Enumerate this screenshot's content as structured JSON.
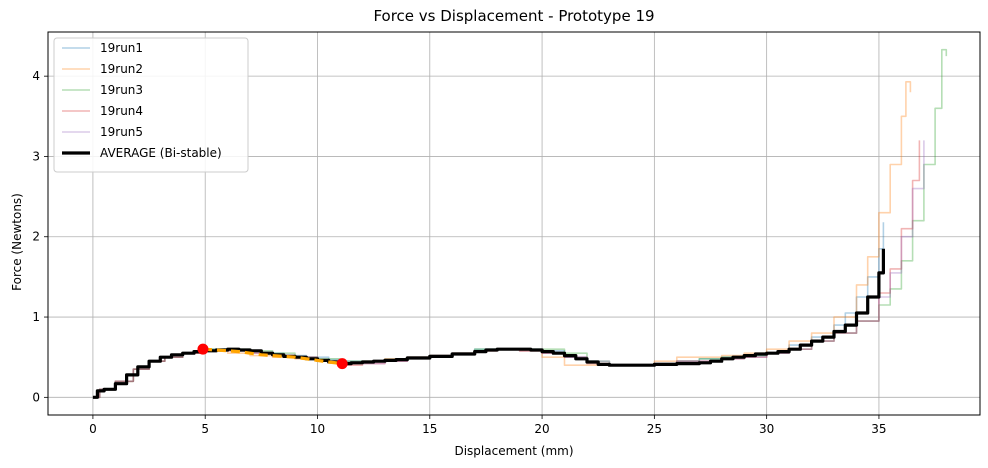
{
  "chart_data": {
    "type": "line",
    "title": "Force vs Displacement - Prototype 19",
    "xlabel": "Displacement (mm)",
    "ylabel": "Force (Newtons)",
    "xlim": [
      -2,
      39.5
    ],
    "ylim": [
      -0.22,
      4.55
    ],
    "xticks": [
      0,
      5,
      10,
      15,
      20,
      25,
      30,
      35
    ],
    "yticks": [
      0,
      1,
      2,
      3,
      4
    ],
    "grid": true,
    "legend_position": "top-left",
    "series": [
      {
        "name": "19run1",
        "color": "#1f77b4",
        "style": "faint",
        "x": [
          0,
          0.3,
          1,
          1.8,
          2.5,
          3.2,
          4,
          5,
          5.8,
          6.5,
          7.5,
          8.5,
          9.5,
          10.5,
          11.2,
          12,
          13,
          14,
          15,
          16,
          17,
          18,
          19,
          20,
          21,
          22,
          22.5,
          24,
          25,
          26,
          27,
          28,
          29,
          30,
          31,
          32,
          33,
          33.5,
          34,
          34.5,
          35,
          35.2
        ],
        "y": [
          0,
          0.1,
          0.2,
          0.35,
          0.45,
          0.5,
          0.55,
          0.6,
          0.6,
          0.58,
          0.55,
          0.52,
          0.5,
          0.47,
          0.45,
          0.45,
          0.47,
          0.5,
          0.52,
          0.55,
          0.6,
          0.6,
          0.6,
          0.58,
          0.5,
          0.45,
          0.4,
          0.4,
          0.42,
          0.45,
          0.48,
          0.5,
          0.52,
          0.55,
          0.65,
          0.75,
          0.9,
          1.05,
          1.25,
          1.5,
          1.85,
          2.18
        ]
      },
      {
        "name": "19run2",
        "color": "#ff7f0e",
        "style": "faint",
        "x": [
          0,
          0.3,
          1,
          1.8,
          2.5,
          3.2,
          4,
          5,
          6,
          7,
          8,
          9,
          10,
          11,
          12,
          13,
          14,
          15,
          16,
          17,
          18,
          19,
          20,
          21,
          22,
          23,
          24,
          25,
          26,
          27,
          28,
          29,
          30,
          31,
          32,
          33,
          34,
          34.5,
          35,
          35.5,
          36,
          36.2,
          36.4
        ],
        "y": [
          0,
          0.1,
          0.2,
          0.35,
          0.45,
          0.5,
          0.55,
          0.58,
          0.55,
          0.52,
          0.5,
          0.48,
          0.45,
          0.42,
          0.45,
          0.48,
          0.5,
          0.52,
          0.55,
          0.58,
          0.6,
          0.58,
          0.5,
          0.4,
          0.4,
          0.4,
          0.4,
          0.45,
          0.5,
          0.5,
          0.52,
          0.55,
          0.6,
          0.7,
          0.8,
          1.0,
          1.4,
          1.75,
          2.3,
          2.9,
          3.5,
          3.93,
          3.8
        ]
      },
      {
        "name": "19run3",
        "color": "#2ca02c",
        "style": "faint",
        "x": [
          0,
          0.3,
          1,
          1.8,
          2.5,
          3.2,
          4,
          5,
          6,
          7,
          8,
          9,
          10,
          11,
          12,
          13,
          14,
          15,
          16,
          17,
          18,
          19,
          20,
          21,
          22,
          23,
          24,
          25,
          26,
          27,
          28,
          29,
          30,
          31,
          32,
          33,
          34,
          35,
          35.5,
          36,
          36.5,
          37,
          37.5,
          37.8,
          38
        ],
        "y": [
          0,
          0.1,
          0.2,
          0.35,
          0.45,
          0.5,
          0.55,
          0.6,
          0.6,
          0.58,
          0.55,
          0.5,
          0.48,
          0.45,
          0.45,
          0.47,
          0.5,
          0.52,
          0.55,
          0.6,
          0.6,
          0.6,
          0.6,
          0.55,
          0.45,
          0.4,
          0.4,
          0.42,
          0.45,
          0.48,
          0.5,
          0.52,
          0.55,
          0.6,
          0.7,
          0.8,
          0.95,
          1.15,
          1.35,
          1.7,
          2.2,
          2.9,
          3.6,
          4.33,
          4.25
        ]
      },
      {
        "name": "19run4",
        "color": "#d62728",
        "style": "faint",
        "x": [
          0,
          0.3,
          1,
          1.8,
          2.5,
          3.2,
          4,
          5,
          6,
          7,
          8,
          9,
          10,
          11,
          12,
          13,
          14,
          15,
          16,
          17,
          18,
          19,
          20,
          21,
          22,
          23,
          24,
          25,
          26,
          27,
          28,
          29,
          30,
          31,
          32,
          33,
          34,
          35,
          35.5,
          36,
          36.5,
          36.8
        ],
        "y": [
          0,
          0.1,
          0.2,
          0.35,
          0.45,
          0.5,
          0.55,
          0.58,
          0.58,
          0.55,
          0.52,
          0.5,
          0.45,
          0.4,
          0.42,
          0.45,
          0.5,
          0.52,
          0.55,
          0.58,
          0.6,
          0.58,
          0.55,
          0.5,
          0.42,
          0.4,
          0.4,
          0.42,
          0.45,
          0.45,
          0.48,
          0.5,
          0.55,
          0.6,
          0.7,
          0.8,
          0.95,
          1.3,
          1.6,
          2.1,
          2.7,
          3.2
        ]
      },
      {
        "name": "19run5",
        "color": "#9467bd",
        "style": "faint",
        "x": [
          0,
          0.3,
          1,
          1.8,
          2.5,
          3.2,
          4,
          5,
          6,
          7,
          8,
          9,
          10,
          11,
          12,
          13,
          14,
          15,
          16,
          17,
          18,
          19,
          20,
          21,
          22,
          23,
          24,
          25,
          26,
          27,
          28,
          29,
          30,
          31,
          32,
          33,
          34,
          35,
          35.5,
          36,
          36.5,
          37
        ],
        "y": [
          0,
          0.1,
          0.2,
          0.35,
          0.45,
          0.5,
          0.55,
          0.58,
          0.58,
          0.55,
          0.52,
          0.5,
          0.45,
          0.42,
          0.42,
          0.45,
          0.5,
          0.52,
          0.55,
          0.58,
          0.6,
          0.58,
          0.55,
          0.5,
          0.45,
          0.4,
          0.4,
          0.42,
          0.45,
          0.45,
          0.48,
          0.5,
          0.55,
          0.6,
          0.7,
          0.8,
          0.95,
          1.25,
          1.55,
          2.0,
          2.6,
          3.2
        ]
      },
      {
        "name": "AVERAGE (Bi-stable)",
        "color": "#000000",
        "style": "bold",
        "x": [
          0,
          0.2,
          0.5,
          1,
          1.5,
          2,
          2.5,
          3,
          3.5,
          4,
          4.5,
          5,
          5.5,
          6,
          6.5,
          7,
          7.5,
          8,
          8.5,
          9,
          9.5,
          10,
          10.5,
          11,
          11.5,
          12,
          12.5,
          13,
          13.5,
          14,
          15,
          16,
          17,
          17.5,
          18,
          18.5,
          19,
          19.5,
          20,
          20.5,
          21,
          21.5,
          22,
          22.5,
          23,
          24,
          25,
          26,
          27,
          27.5,
          28,
          28.5,
          29,
          29.5,
          30,
          30.5,
          31,
          31.5,
          32,
          32.5,
          33,
          33.5,
          34,
          34.5,
          35,
          35.2
        ],
        "y": [
          0,
          0.08,
          0.1,
          0.17,
          0.28,
          0.38,
          0.45,
          0.5,
          0.53,
          0.55,
          0.57,
          0.58,
          0.59,
          0.6,
          0.59,
          0.58,
          0.55,
          0.53,
          0.51,
          0.5,
          0.48,
          0.46,
          0.44,
          0.42,
          0.43,
          0.44,
          0.45,
          0.46,
          0.47,
          0.49,
          0.51,
          0.54,
          0.57,
          0.59,
          0.6,
          0.6,
          0.6,
          0.59,
          0.57,
          0.55,
          0.52,
          0.48,
          0.44,
          0.41,
          0.4,
          0.4,
          0.41,
          0.42,
          0.43,
          0.45,
          0.48,
          0.5,
          0.52,
          0.54,
          0.55,
          0.57,
          0.6,
          0.65,
          0.7,
          0.75,
          0.82,
          0.9,
          1.05,
          1.25,
          1.55,
          1.85
        ]
      },
      {
        "name": "",
        "color": "#ffa500",
        "style": "dashed",
        "x": [
          4.9,
          5.5,
          6,
          6.5,
          7,
          7.5,
          8,
          8.5,
          9,
          9.5,
          10,
          10.5,
          11.1
        ],
        "y": [
          0.6,
          0.59,
          0.58,
          0.57,
          0.55,
          0.53,
          0.52,
          0.51,
          0.5,
          0.48,
          0.46,
          0.44,
          0.42
        ]
      }
    ],
    "markers": [
      {
        "x": 4.9,
        "y": 0.6,
        "color": "#ff0000"
      },
      {
        "x": 11.1,
        "y": 0.42,
        "color": "#ff0000"
      }
    ]
  }
}
